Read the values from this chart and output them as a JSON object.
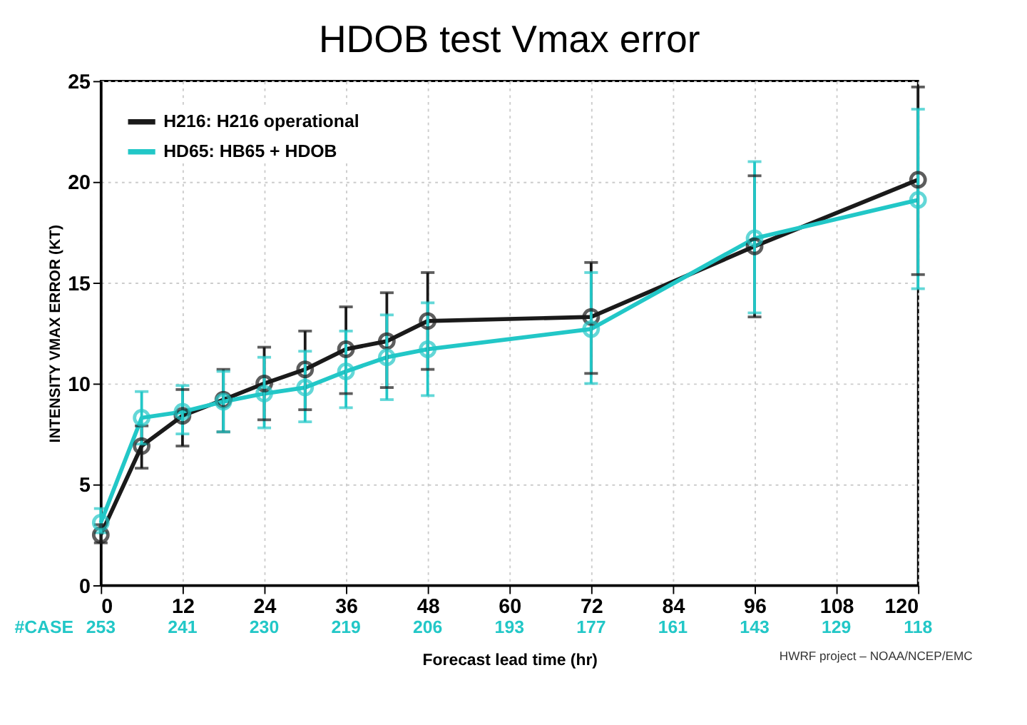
{
  "chart_data": {
    "type": "line",
    "title": "HDOB test Vmax error",
    "xlabel": "Forecast lead time (hr)",
    "ylabel": "INTENSITY VMAX ERROR (KT)",
    "x": [
      0,
      6,
      12,
      18,
      24,
      30,
      36,
      42,
      48,
      72,
      96,
      120
    ],
    "series": [
      {
        "name": "H216: H216 operational",
        "color": "#1a1a1a",
        "values": [
          2.5,
          6.9,
          8.4,
          9.2,
          10.0,
          10.7,
          11.7,
          12.1,
          13.1,
          13.3,
          16.8,
          20.1
        ],
        "errors": [
          [
            2.1,
            3.0
          ],
          [
            5.8,
            7.9
          ],
          [
            6.9,
            9.7
          ],
          [
            7.6,
            10.7
          ],
          [
            8.2,
            11.8
          ],
          [
            8.7,
            12.6
          ],
          [
            9.5,
            13.8
          ],
          [
            9.8,
            14.5
          ],
          [
            10.7,
            15.5
          ],
          [
            10.5,
            16.0
          ],
          [
            13.3,
            20.3
          ],
          [
            15.4,
            24.7
          ]
        ]
      },
      {
        "name": "HD65: HB65 + HDOB",
        "color": "#22c7c7",
        "values": [
          3.1,
          8.3,
          8.6,
          9.1,
          9.5,
          9.8,
          10.6,
          11.3,
          11.7,
          12.7,
          17.2,
          19.1
        ],
        "errors": [
          [
            2.6,
            3.8
          ],
          [
            7.0,
            9.6
          ],
          [
            7.5,
            9.9
          ],
          [
            7.6,
            10.6
          ],
          [
            7.8,
            11.3
          ],
          [
            8.1,
            11.6
          ],
          [
            8.8,
            12.6
          ],
          [
            9.2,
            13.4
          ],
          [
            9.4,
            14.0
          ],
          [
            10.0,
            15.5
          ],
          [
            13.5,
            21.0
          ],
          [
            14.7,
            23.6
          ]
        ]
      }
    ],
    "xlim": [
      0,
      120
    ],
    "xticks": [
      0,
      12,
      24,
      36,
      48,
      60,
      72,
      84,
      96,
      108,
      120
    ],
    "ylim": [
      0,
      25
    ],
    "yticks": [
      0,
      5,
      10,
      15,
      20,
      25
    ],
    "grid": true,
    "legend": "top left",
    "marker": "circle",
    "line_style": "solid",
    "annotations": [
      "#CASE",
      "253",
      "241",
      "230",
      "219",
      "206",
      "193",
      "177",
      "161",
      "143",
      "129",
      "118",
      "HWRF project – NOAA/NCEP/EMC"
    ]
  }
}
